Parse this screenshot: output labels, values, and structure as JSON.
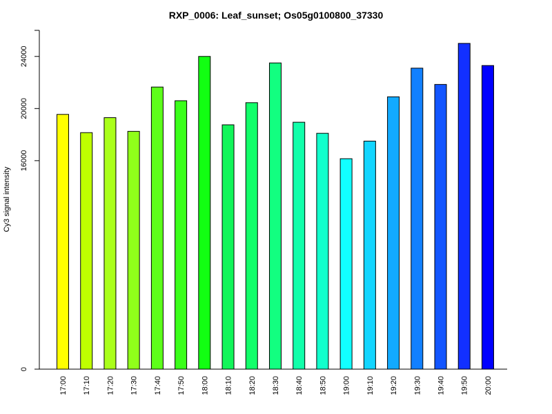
{
  "chart_data": {
    "type": "bar",
    "title": "RXP_0006: Leaf_sunset; Os05g0100800_37330",
    "xlabel": "",
    "ylabel": "Cy3 signal intensity",
    "categories": [
      "17:00",
      "17:10",
      "17:20",
      "17:30",
      "17:40",
      "17:50",
      "18:00",
      "18:10",
      "18:20",
      "18:30",
      "18:40",
      "18:50",
      "19:00",
      "19:10",
      "19:20",
      "19:30",
      "19:40",
      "19:50",
      "20:00"
    ],
    "values": [
      19550,
      18150,
      19300,
      18250,
      21650,
      20600,
      24000,
      18750,
      20450,
      23500,
      18950,
      18100,
      16150,
      17500,
      20900,
      23100,
      21850,
      25000,
      23300
    ],
    "colors": [
      "#FFFF00",
      "#BFFF00",
      "#AAFF1A",
      "#90FF1A",
      "#5DFF1A",
      "#3AFF1A",
      "#12FF12",
      "#12F55A",
      "#12FF6A",
      "#12FF80",
      "#12FFAA",
      "#12FFCC",
      "#12FFFF",
      "#12D5FF",
      "#12AAFF",
      "#1280FF",
      "#1255FF",
      "#1230FF",
      "#0000FF"
    ],
    "yticks": [
      0,
      16000,
      20000,
      24000
    ],
    "ytick_labels": [
      "0",
      "16000",
      "20000",
      "24000"
    ],
    "ylim": [
      0,
      26000
    ],
    "grid": false,
    "legend": "none"
  }
}
